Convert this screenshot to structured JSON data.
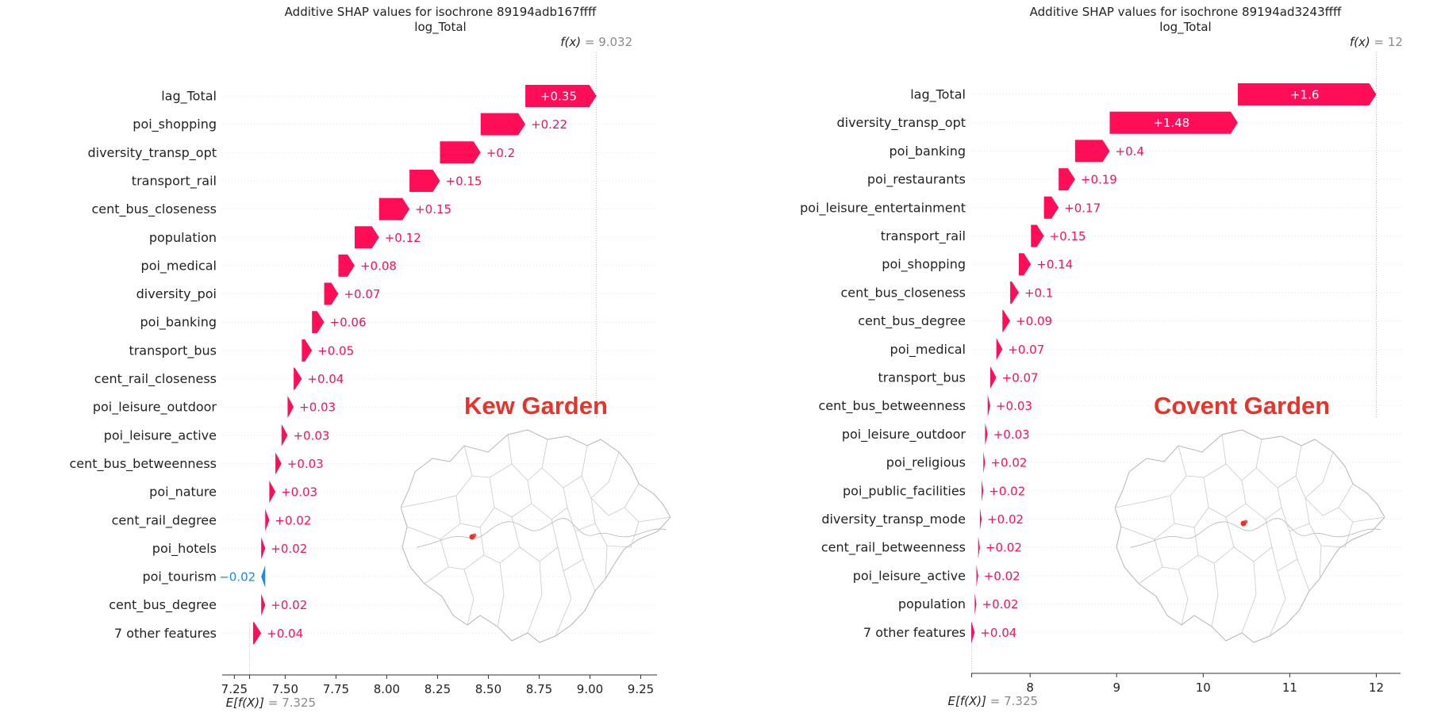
{
  "colors": {
    "positive": "#ff0d57",
    "negative": "#1e88e5",
    "highlight": "#e8332a",
    "grey_text": "#8a8a8a"
  },
  "chart_data": [
    {
      "type": "waterfall",
      "title": "Additive SHAP values for isochrone 89194adb167ffff",
      "subtitle": "log_Total",
      "fx_label": "f(x)",
      "fx_value": "= 9.032",
      "base_label": "E[f(X)]",
      "base_value_label": "= 7.325",
      "base_value": 7.325,
      "final_value": 9.032,
      "xlim": [
        7.19,
        9.33
      ],
      "xticks": [
        7.25,
        7.5,
        7.75,
        8.0,
        8.25,
        8.5,
        8.75,
        9.0,
        9.25
      ],
      "xtick_labels": [
        "7.25",
        "7.50",
        "7.75",
        "8.00",
        "8.25",
        "8.50",
        "8.75",
        "9.00",
        "9.25"
      ],
      "features": [
        "lag_Total",
        "poi_shopping",
        "diversity_transp_opt",
        "transport_rail",
        "cent_bus_closeness",
        "population",
        "poi_medical",
        "diversity_poi",
        "poi_banking",
        "transport_bus",
        "cent_rail_closeness",
        "poi_leisure_outdoor",
        "poi_leisure_active",
        "cent_bus_betweenness",
        "poi_nature",
        "cent_rail_degree",
        "poi_hotels",
        "poi_tourism",
        "cent_bus_degree",
        "7 other features"
      ],
      "values": [
        0.35,
        0.22,
        0.2,
        0.15,
        0.15,
        0.12,
        0.08,
        0.07,
        0.06,
        0.05,
        0.04,
        0.03,
        0.03,
        0.03,
        0.03,
        0.02,
        0.02,
        -0.02,
        0.02,
        0.04
      ],
      "value_labels": [
        "+0.35",
        "+0.22",
        "+0.2",
        "+0.15",
        "+0.15",
        "+0.12",
        "+0.08",
        "+0.07",
        "+0.06",
        "+0.05",
        "+0.04",
        "+0.03",
        "+0.03",
        "+0.03",
        "+0.03",
        "+0.02",
        "+0.02",
        "−0.02",
        "+0.02",
        "+0.04"
      ],
      "starts": [
        8.682,
        8.462,
        8.262,
        8.112,
        7.962,
        7.842,
        7.762,
        7.692,
        7.632,
        7.582,
        7.542,
        7.512,
        7.482,
        7.452,
        7.422,
        7.402,
        7.382,
        7.402,
        7.382,
        7.342
      ]
    },
    {
      "type": "waterfall",
      "title": "Additive SHAP values for isochrone 89194ad3243ffff",
      "subtitle": "log_Total",
      "fx_label": "f(x)",
      "fx_value": "= 12",
      "base_label": "E[f(X)]",
      "base_value_label": "= 7.325",
      "base_value": 7.325,
      "final_value": 12.0,
      "xlim": [
        7.32,
        12.28
      ],
      "xticks": [
        8,
        9,
        10,
        11,
        12
      ],
      "xtick_labels": [
        "8",
        "9",
        "10",
        "11",
        "12"
      ],
      "features": [
        "lag_Total",
        "diversity_transp_opt",
        "poi_banking",
        "poi_restaurants",
        "poi_leisure_entertainment",
        "transport_rail",
        "poi_shopping",
        "cent_bus_closeness",
        "cent_bus_degree",
        "poi_medical",
        "transport_bus",
        "cent_bus_betweenness",
        "poi_leisure_outdoor",
        "poi_religious",
        "poi_public_facilities",
        "diversity_transp_mode",
        "cent_rail_betweenness",
        "poi_leisure_active",
        "population",
        "7 other features"
      ],
      "values": [
        1.6,
        1.48,
        0.4,
        0.19,
        0.17,
        0.15,
        0.14,
        0.1,
        0.09,
        0.07,
        0.07,
        0.03,
        0.03,
        0.02,
        0.02,
        0.02,
        0.02,
        0.02,
        0.02,
        0.04
      ],
      "value_labels": [
        "+1.6",
        "+1.48",
        "+0.4",
        "+0.19",
        "+0.17",
        "+0.15",
        "+0.14",
        "+0.1",
        "+0.09",
        "+0.07",
        "+0.07",
        "+0.03",
        "+0.03",
        "+0.02",
        "+0.02",
        "+0.02",
        "+0.02",
        "+0.02",
        "+0.02",
        "+0.04"
      ],
      "starts": [
        10.4,
        8.92,
        8.52,
        8.33,
        8.16,
        8.01,
        7.87,
        7.77,
        7.68,
        7.61,
        7.54,
        7.51,
        7.48,
        7.46,
        7.44,
        7.42,
        7.4,
        7.38,
        7.36,
        7.32
      ]
    }
  ],
  "maps": {
    "left_label": "Kew Garden",
    "right_label": "Covent Garden"
  }
}
